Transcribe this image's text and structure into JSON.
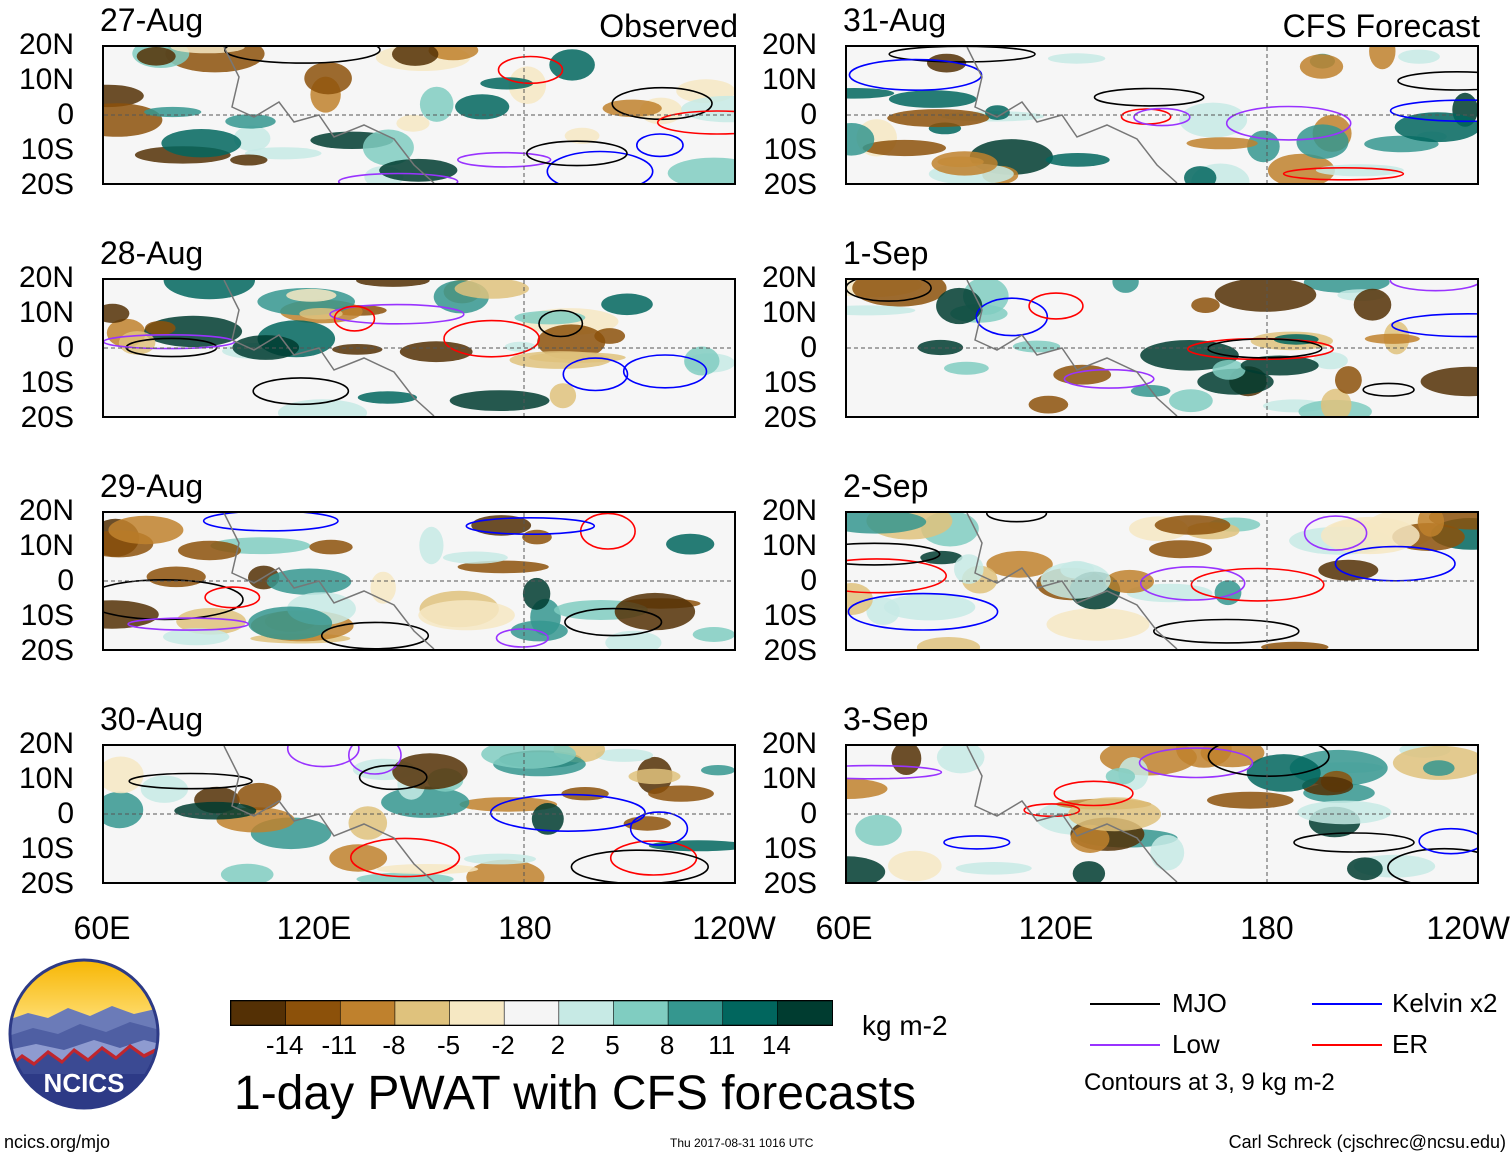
{
  "title": "1-day PWAT with CFS forecasts",
  "units": "kg m-2",
  "source_url": "ncics.org/mjo",
  "timestamp": "Thu 2017-08-31 1016 UTC",
  "author": "Carl Schreck (cjschrec@ncsu.edu)",
  "logo_text": "NCICS",
  "observed_label": "Observed",
  "forecast_label": "CFS Forecast",
  "lat_labels": [
    "20N",
    "10N",
    "0",
    "10S",
    "20S"
  ],
  "lon_labels": [
    "60E",
    "120E",
    "180",
    "120W"
  ],
  "observed_panels": [
    {
      "date": "27-Aug"
    },
    {
      "date": "28-Aug"
    },
    {
      "date": "29-Aug"
    },
    {
      "date": "30-Aug"
    }
  ],
  "forecast_panels": [
    {
      "date": "31-Aug"
    },
    {
      "date": "1-Sep"
    },
    {
      "date": "2-Sep"
    },
    {
      "date": "3-Sep"
    }
  ],
  "colorbar": {
    "ticks": [
      "-14",
      "-11",
      "-8",
      "-5",
      "-2",
      "2",
      "5",
      "8",
      "11",
      "14"
    ],
    "colors": [
      "#543005",
      "#8c510a",
      "#bf812d",
      "#dfc27d",
      "#f6e8c3",
      "#f5f5f5",
      "#c7eae5",
      "#80cdc1",
      "#35978f",
      "#01665e",
      "#003c30"
    ]
  },
  "legend": {
    "items": [
      {
        "label": "MJO",
        "color": "#000000"
      },
      {
        "label": "Kelvin x2",
        "color": "#0000ff"
      },
      {
        "label": "Low",
        "color": "#9933ff"
      },
      {
        "label": "ER",
        "color": "#ff0000"
      }
    ],
    "note": "Contours at 3, 9 kg m-2"
  }
}
